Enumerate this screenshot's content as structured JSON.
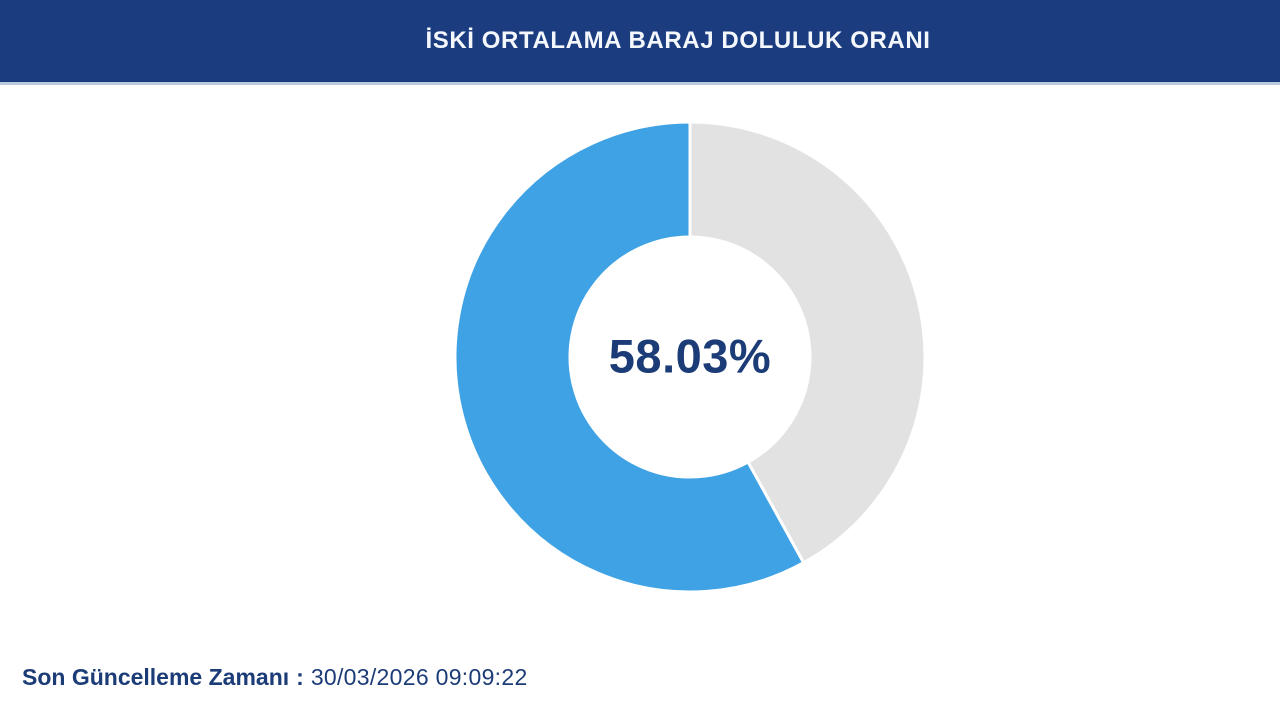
{
  "header": {
    "title": "İSKİ ORTALAMA BARAJ DOLULUK ORANI"
  },
  "footer": {
    "label": "Son Güncelleme Zamanı",
    "separator": ":",
    "datetime": "30/03/2026 09:09:22"
  },
  "colors": {
    "header_background": "#1b3d80",
    "header_text": "#f4f7fb",
    "text_navy": "#1c3c77",
    "donut_filled": "#3fa2e4",
    "donut_empty": "#e2e2e2",
    "segment_gap": "#ffffff"
  },
  "chart_data": {
    "type": "pie",
    "subtype": "donut",
    "title": "İSKİ ORTALAMA BARAJ DOLULUK ORANI",
    "percent_filled": 58.03,
    "percent_empty": 41.97,
    "center_label": "58.03%",
    "filled_color": "#3fa2e4",
    "empty_color": "#e2e2e2",
    "inner_radius_ratio": 0.51,
    "start_angle_deg": 0,
    "filled_direction": "counterclockwise-from-top",
    "legend": "none",
    "grid": "off"
  }
}
